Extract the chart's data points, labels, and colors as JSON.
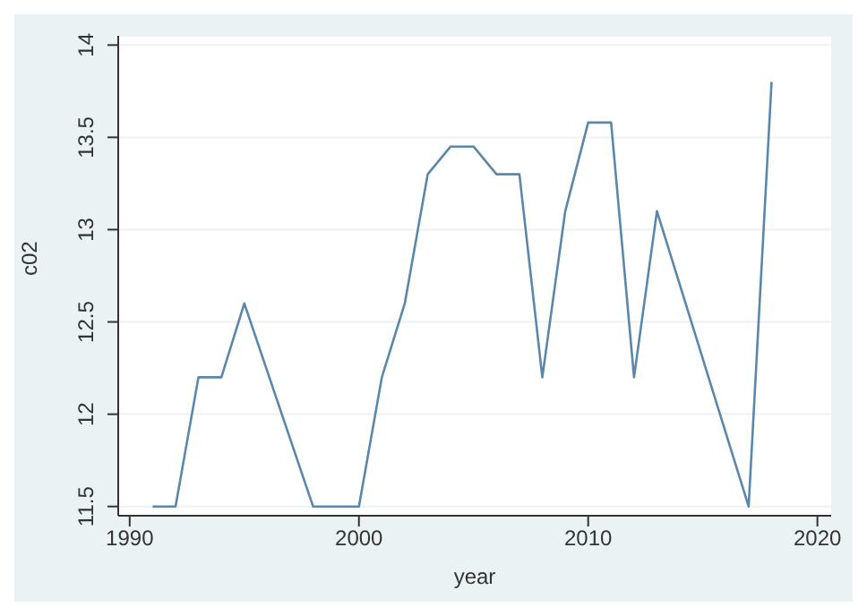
{
  "chart_data": {
    "type": "line",
    "xlabel": "year",
    "ylabel": "c02",
    "x": [
      1991,
      1992,
      1993,
      1994,
      1995,
      1998,
      1999,
      2000,
      2001,
      2002,
      2003,
      2004,
      2005,
      2006,
      2007,
      2008,
      2009,
      2010,
      2011,
      2012,
      2013,
      2017,
      2018
    ],
    "series": [
      {
        "color": "#5a87aa",
        "values": [
          11.5,
          11.5,
          12.2,
          12.2,
          12.6,
          11.5,
          11.5,
          11.5,
          12.2,
          12.6,
          13.3,
          13.45,
          13.45,
          13.3,
          13.3,
          12.2,
          13.1,
          13.58,
          13.58,
          12.2,
          13.1,
          11.5,
          13.8
        ]
      }
    ],
    "xlim": [
      1989.5,
      2020.6
    ],
    "xticks": [
      1990,
      2000,
      2010,
      2020
    ],
    "ylim": [
      11.45,
      14.05
    ],
    "yticks": [
      11.5,
      12,
      12.5,
      13,
      13.5,
      14
    ],
    "grid": "y",
    "legend": false,
    "marker": "none",
    "line_style": "solid"
  }
}
